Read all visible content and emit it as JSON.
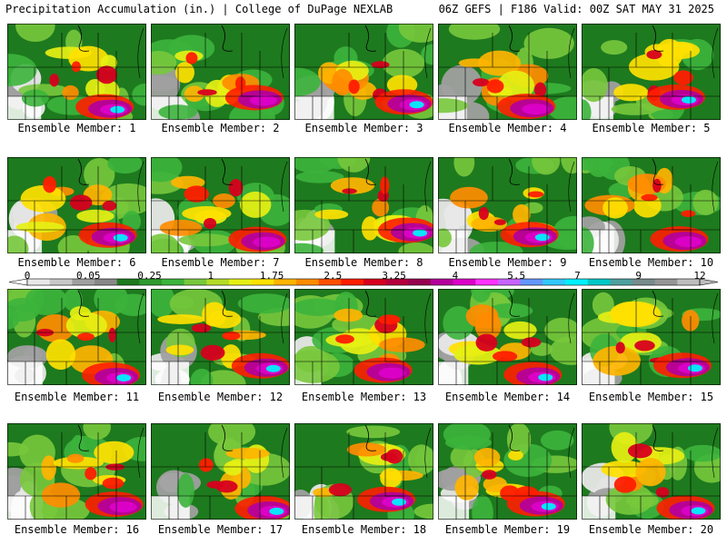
{
  "header": {
    "title": "Precipitation Accumulation (in.) | College of DuPage NEXLAB",
    "valid": "06Z GEFS | F186 Valid: 00Z SAT MAY 31 2025"
  },
  "member_label_prefix": "Ensemble Member: ",
  "members": [
    {
      "label": "Ensemble Member: 1"
    },
    {
      "label": "Ensemble Member: 2"
    },
    {
      "label": "Ensemble Member: 3"
    },
    {
      "label": "Ensemble Member: 4"
    },
    {
      "label": "Ensemble Member: 5"
    },
    {
      "label": "Ensemble Member: 6"
    },
    {
      "label": "Ensemble Member: 7"
    },
    {
      "label": "Ensemble Member: 8"
    },
    {
      "label": "Ensemble Member: 9"
    },
    {
      "label": "Ensemble Member: 10"
    },
    {
      "label": "Ensemble Member: 11"
    },
    {
      "label": "Ensemble Member: 12"
    },
    {
      "label": "Ensemble Member: 13"
    },
    {
      "label": "Ensemble Member: 14"
    },
    {
      "label": "Ensemble Member: 15"
    },
    {
      "label": "Ensemble Member: 16"
    },
    {
      "label": "Ensemble Member: 17"
    },
    {
      "label": "Ensemble Member: 18"
    },
    {
      "label": "Ensemble Member: 19"
    },
    {
      "label": "Ensemble Member: 20"
    }
  ],
  "colorbar": {
    "tick_labels": [
      "0",
      "0.05",
      "0.25",
      "1",
      "1.75",
      "2.5",
      "3.25",
      "4",
      "5.5",
      "7",
      "9",
      "12"
    ],
    "colors": [
      "#e8e8e8",
      "#c8c8c8",
      "#a0a0a0",
      "#888888",
      "#1e7a1e",
      "#2e9a2e",
      "#3cb43c",
      "#78c83c",
      "#b4dc28",
      "#e6f014",
      "#ffe100",
      "#ffb400",
      "#ff8c00",
      "#ff5000",
      "#ff1e00",
      "#d7001e",
      "#b4003c",
      "#960050",
      "#b4009b",
      "#dc00c8",
      "#ff32ff",
      "#c864ff",
      "#6496ff",
      "#32c8ff",
      "#00f0ff",
      "#00c8c8",
      "#50a0a0",
      "#788c8c",
      "#969696",
      "#bebebe"
    ]
  }
}
